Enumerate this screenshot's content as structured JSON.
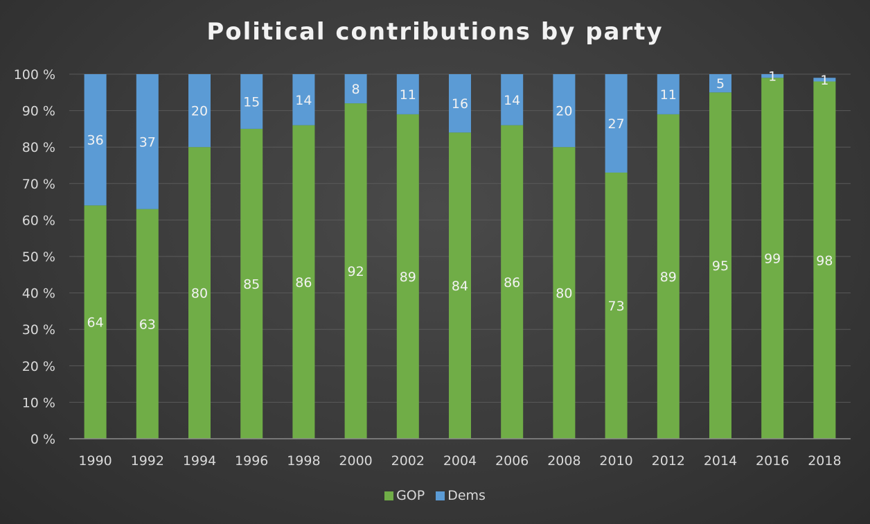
{
  "chart_data": {
    "type": "bar",
    "stacked": true,
    "title": "Political contributions by party",
    "xlabel": "",
    "ylabel": "",
    "ylim": [
      0,
      100
    ],
    "y_ticks": [
      "0 %",
      "10 %",
      "20 %",
      "30 %",
      "40 %",
      "50 %",
      "60 %",
      "70 %",
      "80 %",
      "90 %",
      "100 %"
    ],
    "grid": true,
    "legend_position": "bottom",
    "categories": [
      "1990",
      "1992",
      "1994",
      "1996",
      "1998",
      "2000",
      "2002",
      "2004",
      "2006",
      "2008",
      "2010",
      "2012",
      "2014",
      "2016",
      "2018"
    ],
    "series": [
      {
        "name": "GOP",
        "color": "#70ad47",
        "values": [
          64,
          63,
          80,
          85,
          86,
          92,
          89,
          84,
          86,
          80,
          73,
          89,
          95,
          99,
          98
        ]
      },
      {
        "name": "Dems",
        "color": "#5b9bd5",
        "values": [
          36,
          37,
          20,
          15,
          14,
          8,
          11,
          16,
          14,
          20,
          27,
          11,
          5,
          1,
          1
        ]
      }
    ]
  }
}
